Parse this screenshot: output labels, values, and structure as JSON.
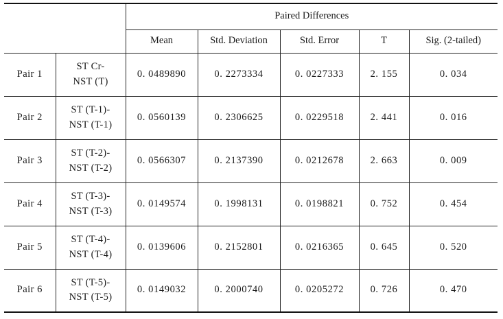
{
  "header": {
    "group": "Paired Differences",
    "columns": [
      "Mean",
      "Std. Deviation",
      "Std. Error",
      "T",
      "Sig. (2-tailed)"
    ]
  },
  "rows": [
    {
      "pair": "Pair 1",
      "test_line1": "ST Cr-",
      "test_line2": "NST (T)",
      "mean": "0. 0489890",
      "std_dev": "0. 2273334",
      "std_err": "0. 0227333",
      "t": "2. 155",
      "sig": "0. 034"
    },
    {
      "pair": "Pair 2",
      "test_line1": "ST (T-1)-",
      "test_line2": "NST (T-1)",
      "mean": "0. 0560139",
      "std_dev": "0. 2306625",
      "std_err": "0. 0229518",
      "t": "2. 441",
      "sig": "0. 016"
    },
    {
      "pair": "Pair 3",
      "test_line1": "ST (T-2)-",
      "test_line2": "NST (T-2)",
      "mean": "0. 0566307",
      "std_dev": "0. 2137390",
      "std_err": "0. 0212678",
      "t": "2. 663",
      "sig": "0. 009"
    },
    {
      "pair": "Pair 4",
      "test_line1": "ST (T-3)-",
      "test_line2": "NST (T-3)",
      "mean": "0. 0149574",
      "std_dev": "0. 1998131",
      "std_err": "0. 0198821",
      "t": "0. 752",
      "sig": "0. 454"
    },
    {
      "pair": "Pair 5",
      "test_line1": "ST (T-4)-",
      "test_line2": "NST (T-4)",
      "mean": "0. 0139606",
      "std_dev": "0. 2152801",
      "std_err": "0. 0216365",
      "t": "0. 645",
      "sig": "0. 520"
    },
    {
      "pair": "Pair 6",
      "test_line1": "ST (T-5)-",
      "test_line2": "NST (T-5)",
      "mean": "0. 0149032",
      "std_dev": "0. 2000740",
      "std_err": "0. 0205272",
      "t": "0. 726",
      "sig": "0. 470"
    }
  ]
}
